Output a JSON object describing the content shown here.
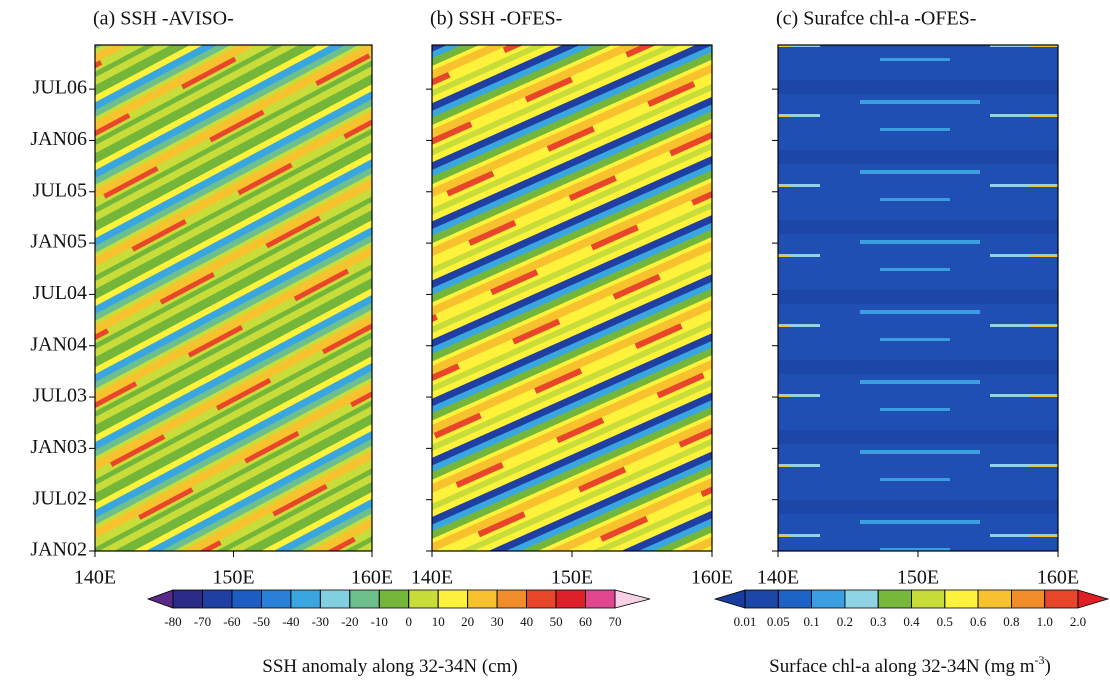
{
  "chart_data": [
    {
      "type": "heatmap",
      "title": "(a) SSH -AVISO-",
      "xlim": [
        140,
        160
      ],
      "xticks": [
        {
          "value": 140,
          "label": "140E"
        },
        {
          "value": 150,
          "label": "150E"
        },
        {
          "value": 160,
          "label": "160E"
        }
      ],
      "ylim": [
        2002,
        2006.93
      ],
      "yticks": [
        {
          "value": 2002,
          "label": "JAN02"
        },
        {
          "value": 2002.5,
          "label": "JUL02"
        },
        {
          "value": 2003,
          "label": "JAN03"
        },
        {
          "value": 2003.5,
          "label": "JUL03"
        },
        {
          "value": 2004,
          "label": "JAN04"
        },
        {
          "value": 2004.5,
          "label": "JUL04"
        },
        {
          "value": 2005,
          "label": "JAN05"
        },
        {
          "value": 2005.5,
          "label": "JUL05"
        },
        {
          "value": 2006,
          "label": "JAN06"
        },
        {
          "value": 2006.5,
          "label": "JUL06"
        }
      ]
    },
    {
      "type": "heatmap",
      "title": "(b) SSH -OFES-",
      "xlim": [
        140,
        160
      ],
      "xticks": [
        {
          "value": 140,
          "label": "140E"
        },
        {
          "value": 150,
          "label": "150E"
        },
        {
          "value": 160,
          "label": "160E"
        }
      ],
      "ylim": [
        2002,
        2006.93
      ],
      "yticks": [
        2002,
        2002.5,
        2003,
        2003.5,
        2004,
        2004.5,
        2005,
        2005.5,
        2006,
        2006.5
      ]
    },
    {
      "type": "heatmap",
      "title": "(c) Surafce chl-a  -OFES-",
      "xlim": [
        140,
        160
      ],
      "xticks": [
        {
          "value": 140,
          "label": "140E"
        },
        {
          "value": 150,
          "label": "150E"
        },
        {
          "value": 160,
          "label": "160E"
        }
      ],
      "ylim": [
        2002,
        2006.93
      ],
      "yticks": [
        2002,
        2002.5,
        2003,
        2003.5,
        2004,
        2004.5,
        2005,
        2005.5,
        2006,
        2006.5
      ]
    }
  ],
  "colorbars": [
    {
      "label": "SSH anomaly along 32-34N (cm)",
      "levels": [
        -80,
        -70,
        -60,
        -50,
        -40,
        -30,
        -20,
        -10,
        0,
        10,
        20,
        30,
        40,
        50,
        60,
        70
      ],
      "colors": [
        "#5b2a88",
        "#2b2b8a",
        "#1f3fa3",
        "#1d5cc2",
        "#2a7fd6",
        "#39a6df",
        "#83cfe2",
        "#6dbf8c",
        "#74b63a",
        "#c9dd3a",
        "#fff23a",
        "#f8c22f",
        "#f08c2a",
        "#e8452a",
        "#df2028",
        "#e1478e",
        "#f0a3cb",
        "#f7d2e6"
      ]
    },
    {
      "label": "Surface chl-a along 32-34N (mg m",
      "label_sup": "-3",
      "label_end": ")",
      "levels": [
        0.01,
        0.05,
        0.1,
        0.2,
        0.3,
        0.4,
        0.5,
        0.6,
        0.8,
        {
          "value": 1,
          "label": "1.0"
        },
        {
          "value": 2,
          "label": "2.0"
        }
      ],
      "colors": [
        "#1a3c9e",
        "#1c46a8",
        "#1f62c6",
        "#3a9ee0",
        "#8fd4e4",
        "#76b83c",
        "#c9dd3a",
        "#fff23a",
        "#f8c22f",
        "#f08c2a",
        "#e8452a",
        "#de1f28"
      ]
    }
  ]
}
